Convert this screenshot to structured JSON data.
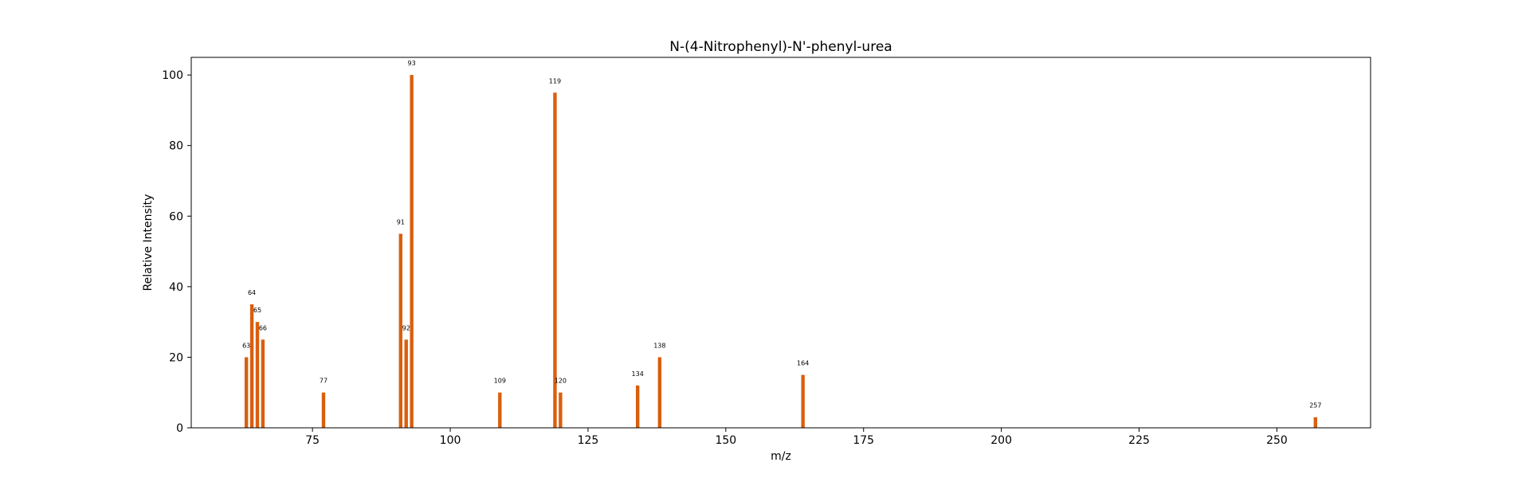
{
  "chart_data": {
    "type": "bar",
    "title": "N-(4-Nitrophenyl)-N'-phenyl-urea",
    "xlabel": "m/z",
    "ylabel": "Relative Intensity",
    "xlim": [
      53,
      267
    ],
    "ylim": [
      0,
      105
    ],
    "xticks": [
      75,
      100,
      125,
      150,
      175,
      200,
      225,
      250
    ],
    "yticks": [
      0,
      20,
      40,
      60,
      80,
      100
    ],
    "grid": false,
    "bar_color": "#d95f0e",
    "points": [
      {
        "x": 63,
        "y": 20,
        "label": "63"
      },
      {
        "x": 64,
        "y": 35,
        "label": "64"
      },
      {
        "x": 65,
        "y": 30,
        "label": "65"
      },
      {
        "x": 66,
        "y": 25,
        "label": "66"
      },
      {
        "x": 77,
        "y": 10,
        "label": "77"
      },
      {
        "x": 91,
        "y": 55,
        "label": "91"
      },
      {
        "x": 92,
        "y": 25,
        "label": "92"
      },
      {
        "x": 93,
        "y": 100,
        "label": "93"
      },
      {
        "x": 109,
        "y": 10,
        "label": "109"
      },
      {
        "x": 119,
        "y": 95,
        "label": "119"
      },
      {
        "x": 120,
        "y": 10,
        "label": "120"
      },
      {
        "x": 134,
        "y": 12,
        "label": "134"
      },
      {
        "x": 138,
        "y": 20,
        "label": "138"
      },
      {
        "x": 164,
        "y": 15,
        "label": "164"
      },
      {
        "x": 257,
        "y": 3,
        "label": "257"
      }
    ]
  }
}
